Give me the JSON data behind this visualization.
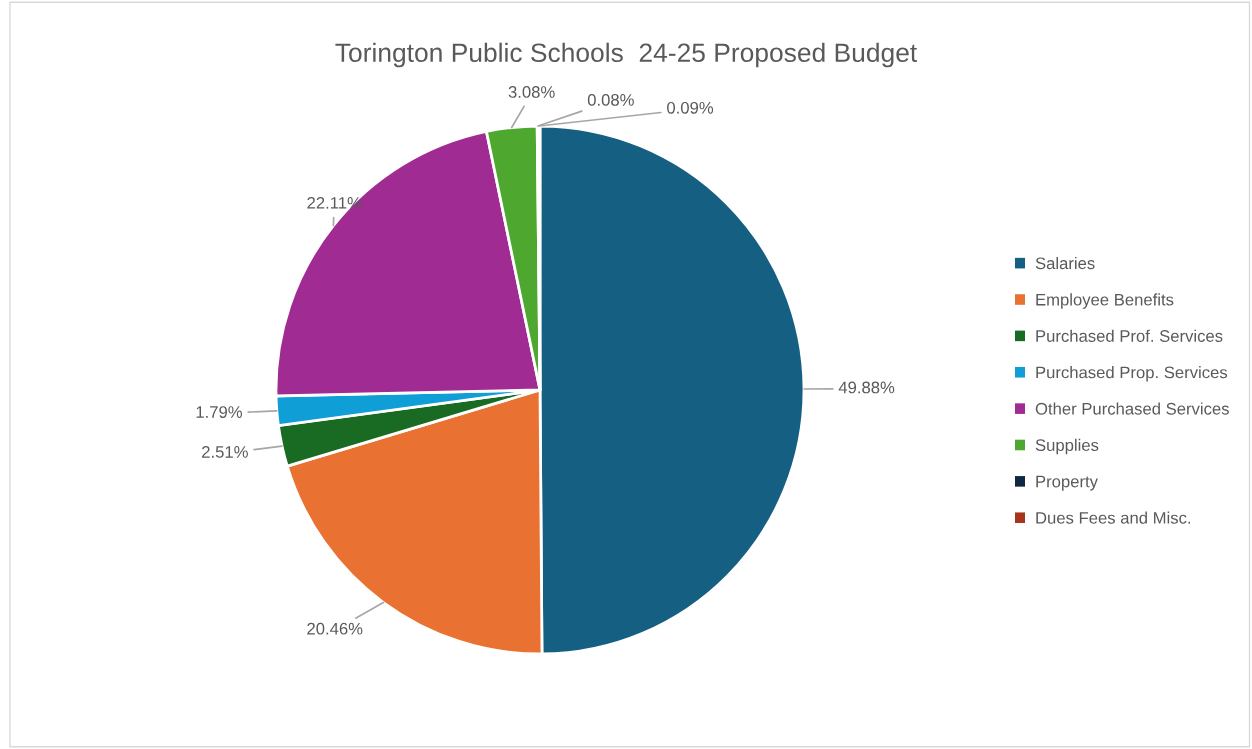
{
  "chart_data": {
    "type": "pie",
    "title": "Torington Public Schools  24-25 Proposed Budget",
    "categories": [
      "Salaries",
      "Employee Benefits",
      "Purchased Prof. Services",
      "Purchased Prop. Services",
      "Other Purchased Services",
      "Supplies",
      "Property",
      "Dues Fees and Misc."
    ],
    "values": [
      49.88,
      20.46,
      2.51,
      1.79,
      22.11,
      3.08,
      0.08,
      0.09
    ],
    "value_labels": [
      "49.88%",
      "20.46%",
      "2.51%",
      "1.79%",
      "22.11%",
      "3.08%",
      "0.08%",
      "0.09%"
    ],
    "colors": [
      "#156082",
      "#e97132",
      "#196b24",
      "#0f9ed5",
      "#a02b93",
      "#4ea72e",
      "#0e2841",
      "#a5361a"
    ],
    "legend": "right"
  }
}
